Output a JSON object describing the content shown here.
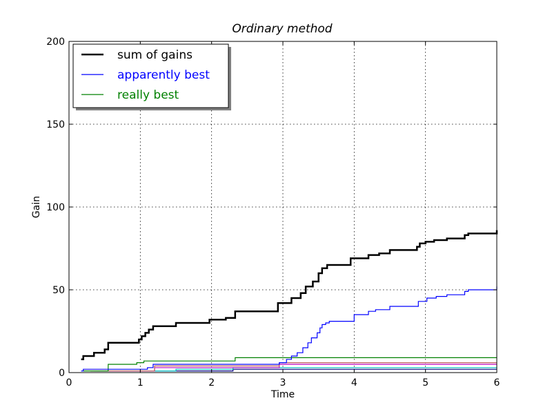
{
  "chart_data": {
    "type": "line",
    "title": "Ordinary method",
    "xlabel": "Time",
    "ylabel": "Gain",
    "xlim": [
      0,
      6
    ],
    "ylim": [
      0,
      200
    ],
    "xticks": [
      "0",
      "1",
      "2",
      "3",
      "4",
      "5",
      "6"
    ],
    "yticks": [
      "0",
      "50",
      "100",
      "150",
      "200"
    ],
    "grid": true,
    "legend_position": "top-left",
    "series": [
      {
        "name": "sum of gains",
        "color": "#000000",
        "width": 2.5,
        "legend": true,
        "points": [
          [
            0.17,
            8
          ],
          [
            0.2,
            10
          ],
          [
            0.35,
            12
          ],
          [
            0.5,
            14
          ],
          [
            0.55,
            18
          ],
          [
            0.98,
            20
          ],
          [
            1.02,
            22
          ],
          [
            1.07,
            24
          ],
          [
            1.12,
            26
          ],
          [
            1.18,
            28
          ],
          [
            1.5,
            30
          ],
          [
            1.97,
            32
          ],
          [
            2.2,
            33
          ],
          [
            2.33,
            37
          ],
          [
            2.93,
            42
          ],
          [
            3.12,
            45
          ],
          [
            3.25,
            48
          ],
          [
            3.32,
            52
          ],
          [
            3.42,
            55
          ],
          [
            3.5,
            60
          ],
          [
            3.55,
            63
          ],
          [
            3.62,
            65
          ],
          [
            3.95,
            69
          ],
          [
            4.2,
            71
          ],
          [
            4.35,
            72
          ],
          [
            4.5,
            74
          ],
          [
            4.88,
            76
          ],
          [
            4.92,
            78
          ],
          [
            5.0,
            79
          ],
          [
            5.12,
            80
          ],
          [
            5.3,
            81
          ],
          [
            5.55,
            83
          ],
          [
            5.6,
            84
          ],
          [
            5.98,
            84
          ],
          [
            6.0,
            86
          ]
        ]
      },
      {
        "name": "apparently best",
        "color": "#0000ff",
        "width": 1.2,
        "legend": true,
        "points": [
          [
            0.17,
            1
          ],
          [
            0.2,
            2
          ],
          [
            1.1,
            3
          ],
          [
            1.18,
            5
          ],
          [
            2.95,
            6
          ],
          [
            3.05,
            8
          ],
          [
            3.12,
            10
          ],
          [
            3.2,
            12
          ],
          [
            3.28,
            15
          ],
          [
            3.35,
            18
          ],
          [
            3.4,
            21
          ],
          [
            3.48,
            24
          ],
          [
            3.52,
            27
          ],
          [
            3.55,
            29
          ],
          [
            3.6,
            30
          ],
          [
            3.65,
            31
          ],
          [
            4.0,
            35
          ],
          [
            4.2,
            37
          ],
          [
            4.3,
            38
          ],
          [
            4.5,
            40
          ],
          [
            4.9,
            43
          ],
          [
            5.02,
            45
          ],
          [
            5.15,
            46
          ],
          [
            5.3,
            47
          ],
          [
            5.55,
            49
          ],
          [
            5.6,
            50
          ],
          [
            5.98,
            50
          ],
          [
            6.0,
            52
          ]
        ]
      },
      {
        "name": "really best",
        "color": "#008000",
        "width": 1.2,
        "legend": true,
        "points": [
          [
            0.2,
            1
          ],
          [
            0.55,
            5
          ],
          [
            0.95,
            6
          ],
          [
            1.05,
            7
          ],
          [
            2.33,
            9
          ],
          [
            6.0,
            9
          ]
        ]
      },
      {
        "name": "",
        "color": "#bf6060",
        "width": 1.2,
        "legend": false,
        "points": [
          [
            0.3,
            1
          ],
          [
            1.2,
            4
          ],
          [
            2.95,
            6
          ],
          [
            6.0,
            6
          ]
        ]
      },
      {
        "name": "",
        "color": "#bf00bf",
        "width": 1.2,
        "legend": false,
        "points": [
          [
            0.3,
            1
          ],
          [
            1.2,
            3
          ],
          [
            2.95,
            5
          ],
          [
            6.0,
            5
          ]
        ]
      },
      {
        "name": "",
        "color": "#00bfbf",
        "width": 1.2,
        "legend": false,
        "points": [
          [
            0.35,
            1
          ],
          [
            1.5,
            2
          ],
          [
            2.3,
            3
          ],
          [
            6.0,
            3
          ]
        ]
      },
      {
        "name": "",
        "color": "#000080",
        "width": 1.2,
        "legend": false,
        "points": [
          [
            0.4,
            1
          ],
          [
            0.5,
            1
          ],
          [
            2.3,
            2
          ],
          [
            6.0,
            2
          ]
        ]
      }
    ]
  }
}
